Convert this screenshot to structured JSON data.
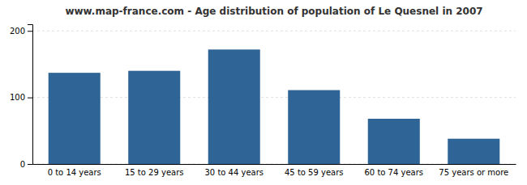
{
  "chart_data": {
    "type": "bar",
    "title": "www.map-france.com - Age distribution of population of Le Quesnel in 2007",
    "categories": [
      "0 to 14 years",
      "15 to 29 years",
      "30 to 44 years",
      "45 to 59 years",
      "60 to 74 years",
      "75 years or more"
    ],
    "values": [
      137,
      140,
      172,
      111,
      68,
      38
    ],
    "color": "#2e6496",
    "ylim": [
      0,
      210
    ],
    "yticks": [
      0,
      100,
      200
    ],
    "grid": true
  }
}
